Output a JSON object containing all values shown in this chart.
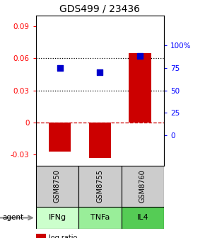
{
  "title": "GDS499 / 23436",
  "samples": [
    "GSM8750",
    "GSM8755",
    "GSM8760"
  ],
  "agents": [
    "IFNg",
    "TNFa",
    "IL4"
  ],
  "log_ratios": [
    -0.027,
    -0.033,
    0.065
  ],
  "percentile_ranks": [
    0.75,
    0.7,
    0.88
  ],
  "bar_color": "#cc0000",
  "dot_color": "#0000cc",
  "ylim_left": [
    -0.04,
    0.1
  ],
  "ylim_right": [
    -0.333,
    1.333
  ],
  "yticks_left": [
    -0.03,
    0.0,
    0.03,
    0.06,
    0.09
  ],
  "yticks_right": [
    0.0,
    0.25,
    0.5,
    0.75,
    1.0
  ],
  "ytick_labels_right": [
    "0",
    "25",
    "50",
    "75",
    "100%"
  ],
  "hline_dotted_black": [
    0.03,
    0.06
  ],
  "hline_dashed_red": [
    0.0
  ],
  "agent_colors": [
    "#ccffcc",
    "#99ee99",
    "#55cc55"
  ],
  "gsm_color": "#cccccc",
  "bar_width": 0.55
}
